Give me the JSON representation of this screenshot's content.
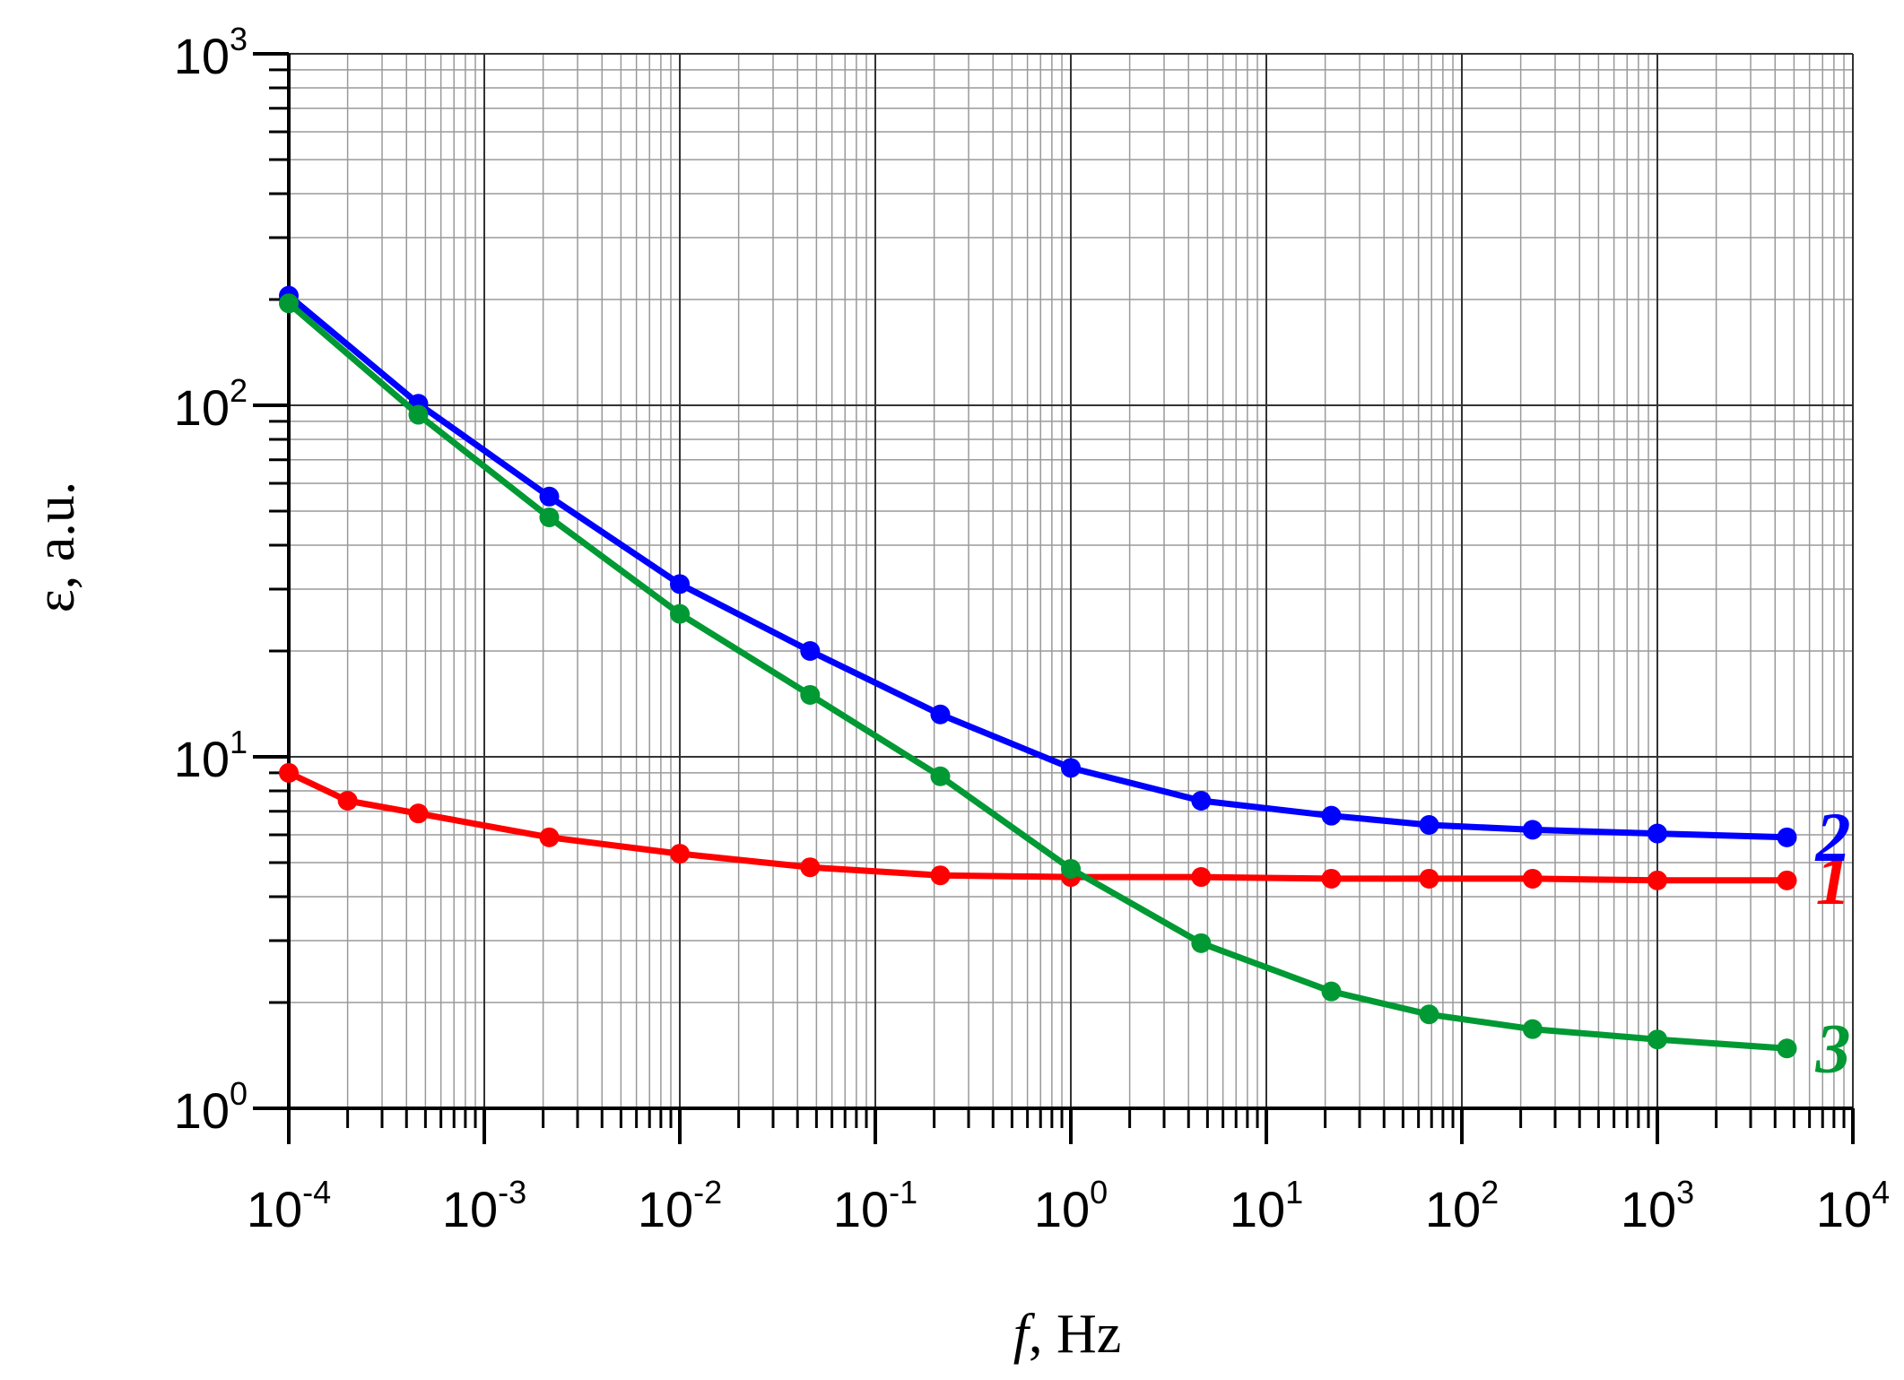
{
  "chart_data": {
    "type": "line",
    "title": "",
    "xlabel": {
      "italic": "f",
      "text": ", Hz"
    },
    "ylabel": "ε, a.u.",
    "xscale": "log",
    "yscale": "log",
    "xlim": [
      0.0001,
      10000
    ],
    "ylim": [
      1,
      1000
    ],
    "grid": true,
    "x_ticks": [
      {
        "value": 0.0001,
        "base": "10",
        "exp": "-4"
      },
      {
        "value": 0.001,
        "base": "10",
        "exp": "-3"
      },
      {
        "value": 0.01,
        "base": "10",
        "exp": "-2"
      },
      {
        "value": 0.1,
        "base": "10",
        "exp": "-1"
      },
      {
        "value": 1,
        "base": "10",
        "exp": "0"
      },
      {
        "value": 10,
        "base": "10",
        "exp": "1"
      },
      {
        "value": 100,
        "base": "10",
        "exp": "2"
      },
      {
        "value": 1000,
        "base": "10",
        "exp": "3"
      },
      {
        "value": 10000,
        "base": "10",
        "exp": "4"
      }
    ],
    "y_ticks": [
      {
        "value": 1,
        "base": "10",
        "exp": "0"
      },
      {
        "value": 10,
        "base": "10",
        "exp": "1"
      },
      {
        "value": 100,
        "base": "10",
        "exp": "2"
      },
      {
        "value": 1000,
        "base": "10",
        "exp": "3"
      }
    ],
    "series": [
      {
        "name": "1",
        "color": "#ff0000",
        "points": [
          [
            0.0001,
            9.0
          ],
          [
            0.0002,
            7.5
          ],
          [
            0.00046,
            6.9
          ],
          [
            0.00215,
            5.9
          ],
          [
            0.01,
            5.3
          ],
          [
            0.0464,
            4.85
          ],
          [
            0.215,
            4.6
          ],
          [
            1,
            4.55
          ],
          [
            4.64,
            4.55
          ],
          [
            21.5,
            4.5
          ],
          [
            68,
            4.5
          ],
          [
            230,
            4.5
          ],
          [
            1000,
            4.45
          ],
          [
            4600,
            4.45
          ]
        ]
      },
      {
        "name": "2",
        "color": "#0000ff",
        "points": [
          [
            0.0001,
            205
          ],
          [
            0.00046,
            101
          ],
          [
            0.00215,
            55
          ],
          [
            0.01,
            31
          ],
          [
            0.0464,
            20
          ],
          [
            0.215,
            13.2
          ],
          [
            1,
            9.3
          ],
          [
            4.64,
            7.5
          ],
          [
            21.5,
            6.8
          ],
          [
            68,
            6.4
          ],
          [
            230,
            6.2
          ],
          [
            1000,
            6.05
          ],
          [
            4600,
            5.9
          ]
        ]
      },
      {
        "name": "3",
        "color": "#009933",
        "points": [
          [
            0.0001,
            195
          ],
          [
            0.00046,
            94
          ],
          [
            0.00215,
            48
          ],
          [
            0.01,
            25.5
          ],
          [
            0.0464,
            15
          ],
          [
            0.215,
            8.8
          ],
          [
            1,
            4.8
          ],
          [
            4.64,
            2.95
          ],
          [
            21.5,
            2.15
          ],
          [
            68,
            1.85
          ],
          [
            230,
            1.68
          ],
          [
            1000,
            1.57
          ],
          [
            4600,
            1.48
          ]
        ]
      }
    ]
  }
}
